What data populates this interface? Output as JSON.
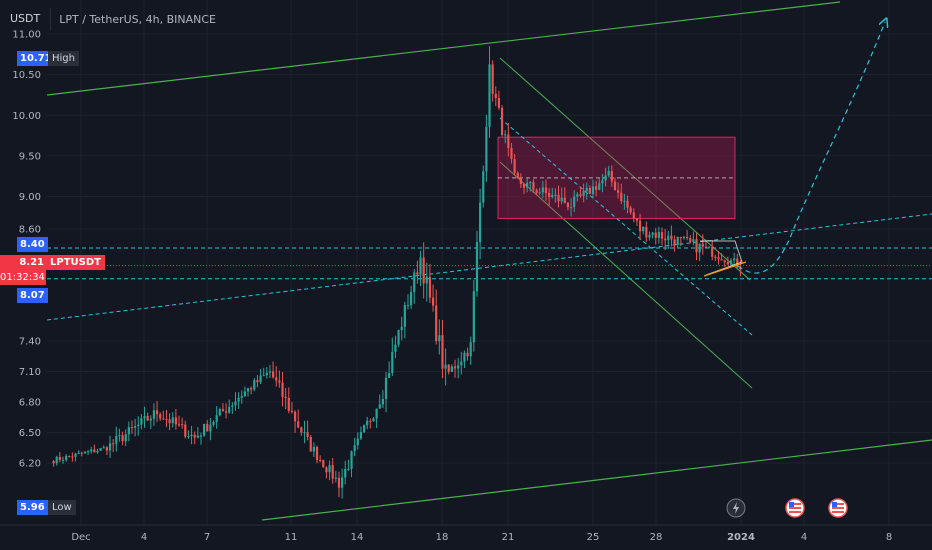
{
  "header": {
    "currency": "USDT",
    "symbol_text": "LPT / TetherUS, 4h, BINANCE"
  },
  "tags": {
    "high_value": "10.71",
    "high_label": "High",
    "low_value": "5.96",
    "low_label": "Low",
    "upper_line": "8.40",
    "lower_line": "8.07",
    "current_price": "8.21",
    "countdown": "01:32:34",
    "ticker": "LPTUSDT"
  },
  "colors": {
    "up": "#26a69a",
    "down": "#ef5350",
    "channel": "#4caf50",
    "dashed": "#26c6da",
    "zone": "#e91e63",
    "current": "#f23645"
  },
  "chart_data": {
    "type": "candlestick",
    "title": "",
    "xlabel": "",
    "ylabel": "",
    "ylim": [
      5.9,
      11.1
    ],
    "y_ticks": [
      6.2,
      6.5,
      6.8,
      7.1,
      7.4,
      8.6,
      9.0,
      9.5,
      10.0,
      10.5,
      11.0
    ],
    "x_ticks": [
      "Dec",
      "4",
      "7",
      "11",
      "14",
      "18",
      "21",
      "25",
      "28",
      "2024",
      "4",
      "8"
    ],
    "segments": [
      {
        "from": 6.22,
        "to": 6.35,
        "bars": 18,
        "vol": 0.06
      },
      {
        "from": 6.35,
        "to": 6.7,
        "bars": 16,
        "vol": 0.12
      },
      {
        "from": 6.7,
        "to": 6.45,
        "bars": 12,
        "vol": 0.12
      },
      {
        "from": 6.45,
        "to": 6.85,
        "bars": 14,
        "vol": 0.12
      },
      {
        "from": 6.85,
        "to": 7.1,
        "bars": 10,
        "vol": 0.1
      },
      {
        "from": 7.1,
        "to": 6.4,
        "bars": 12,
        "vol": 0.15
      },
      {
        "from": 6.4,
        "to": 6.0,
        "bars": 10,
        "vol": 0.12
      },
      {
        "from": 6.0,
        "to": 6.9,
        "bars": 14,
        "vol": 0.14
      },
      {
        "from": 6.9,
        "to": 8.3,
        "bars": 12,
        "vol": 0.18
      },
      {
        "from": 8.3,
        "to": 7.05,
        "bars": 8,
        "vol": 0.25
      },
      {
        "from": 7.05,
        "to": 7.35,
        "bars": 8,
        "vol": 0.14
      },
      {
        "from": 7.35,
        "to": 10.5,
        "bars": 6,
        "vol": 0.3
      },
      {
        "from": 10.5,
        "to": 9.2,
        "bars": 8,
        "vol": 0.2
      },
      {
        "from": 9.2,
        "to": 8.9,
        "bars": 18,
        "vol": 0.16
      },
      {
        "from": 8.9,
        "to": 9.25,
        "bars": 12,
        "vol": 0.14
      },
      {
        "from": 9.25,
        "to": 8.6,
        "bars": 10,
        "vol": 0.14
      },
      {
        "from": 8.6,
        "to": 8.4,
        "bars": 20,
        "vol": 0.14
      },
      {
        "from": 8.4,
        "to": 8.21,
        "bars": 12,
        "vol": 0.1
      }
    ],
    "zone": {
      "x_start": "Dec 20",
      "x_end": "Jan 2",
      "y_top": 9.73,
      "y_bottom": 8.73,
      "mid": 9.23
    },
    "horizontal_levels": [
      8.4,
      8.07
    ],
    "current_price": 8.21
  }
}
